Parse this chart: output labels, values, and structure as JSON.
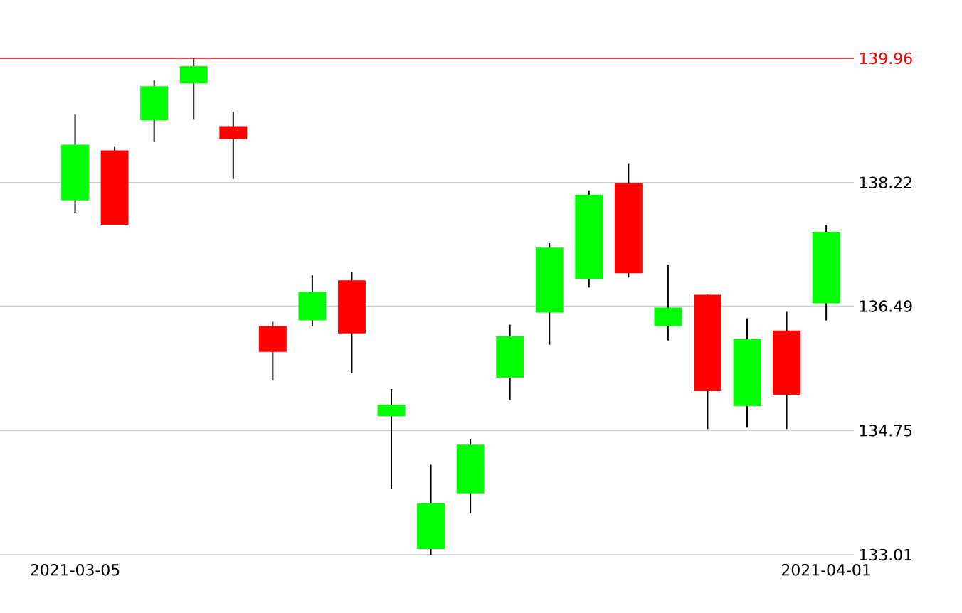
{
  "chart_data": {
    "type": "candlestick",
    "categories": [
      "2021-03-05",
      null,
      null,
      null,
      null,
      null,
      null,
      null,
      null,
      null,
      null,
      null,
      null,
      null,
      null,
      null,
      null,
      null,
      null,
      "2021-04-01"
    ],
    "ohlc": [
      [
        137.97,
        139.17,
        137.8,
        138.75
      ],
      [
        138.67,
        138.72,
        137.63,
        137.63
      ],
      [
        139.09,
        139.65,
        138.79,
        139.57
      ],
      [
        139.61,
        139.96,
        139.1,
        139.85
      ],
      [
        139.01,
        139.21,
        138.27,
        138.83
      ],
      [
        136.21,
        136.27,
        135.45,
        135.85
      ],
      [
        136.29,
        136.92,
        136.21,
        136.69
      ],
      [
        136.85,
        136.97,
        135.55,
        136.11
      ],
      [
        134.95,
        135.33,
        133.93,
        135.11
      ],
      [
        133.09,
        134.27,
        133.01,
        133.73
      ],
      [
        133.87,
        134.63,
        133.59,
        134.55
      ],
      [
        135.49,
        136.23,
        135.17,
        136.07
      ],
      [
        136.4,
        137.37,
        135.95,
        137.31
      ],
      [
        136.87,
        138.11,
        136.75,
        138.05
      ],
      [
        138.21,
        138.49,
        136.89,
        136.95
      ],
      [
        136.21,
        137.07,
        136.01,
        136.47
      ],
      [
        136.65,
        136.65,
        134.77,
        135.3
      ],
      [
        135.09,
        136.32,
        134.79,
        136.03
      ],
      [
        136.15,
        136.41,
        134.77,
        135.25
      ],
      [
        136.53,
        137.63,
        136.29,
        137.53
      ]
    ],
    "colors": [
      "#00ff00",
      "#ff0000",
      "#00ff00",
      "#00ff00",
      "#ff0000",
      "#ff0000",
      "#00ff00",
      "#ff0000",
      "#00ff00",
      "#00ff00",
      "#00ff00",
      "#00ff00",
      "#00ff00",
      "#00ff00",
      "#ff0000",
      "#00ff00",
      "#ff0000",
      "#00ff00",
      "#ff0000",
      "#00ff00"
    ],
    "ylim": [
      133.01,
      139.96
    ],
    "yticks": [
      133.01,
      134.75,
      136.49,
      138.22
    ],
    "grid": "y",
    "ref_lines": [
      {
        "axis": "y",
        "value": 139.96,
        "label": "139.96",
        "color": "#ff0000"
      }
    ]
  }
}
